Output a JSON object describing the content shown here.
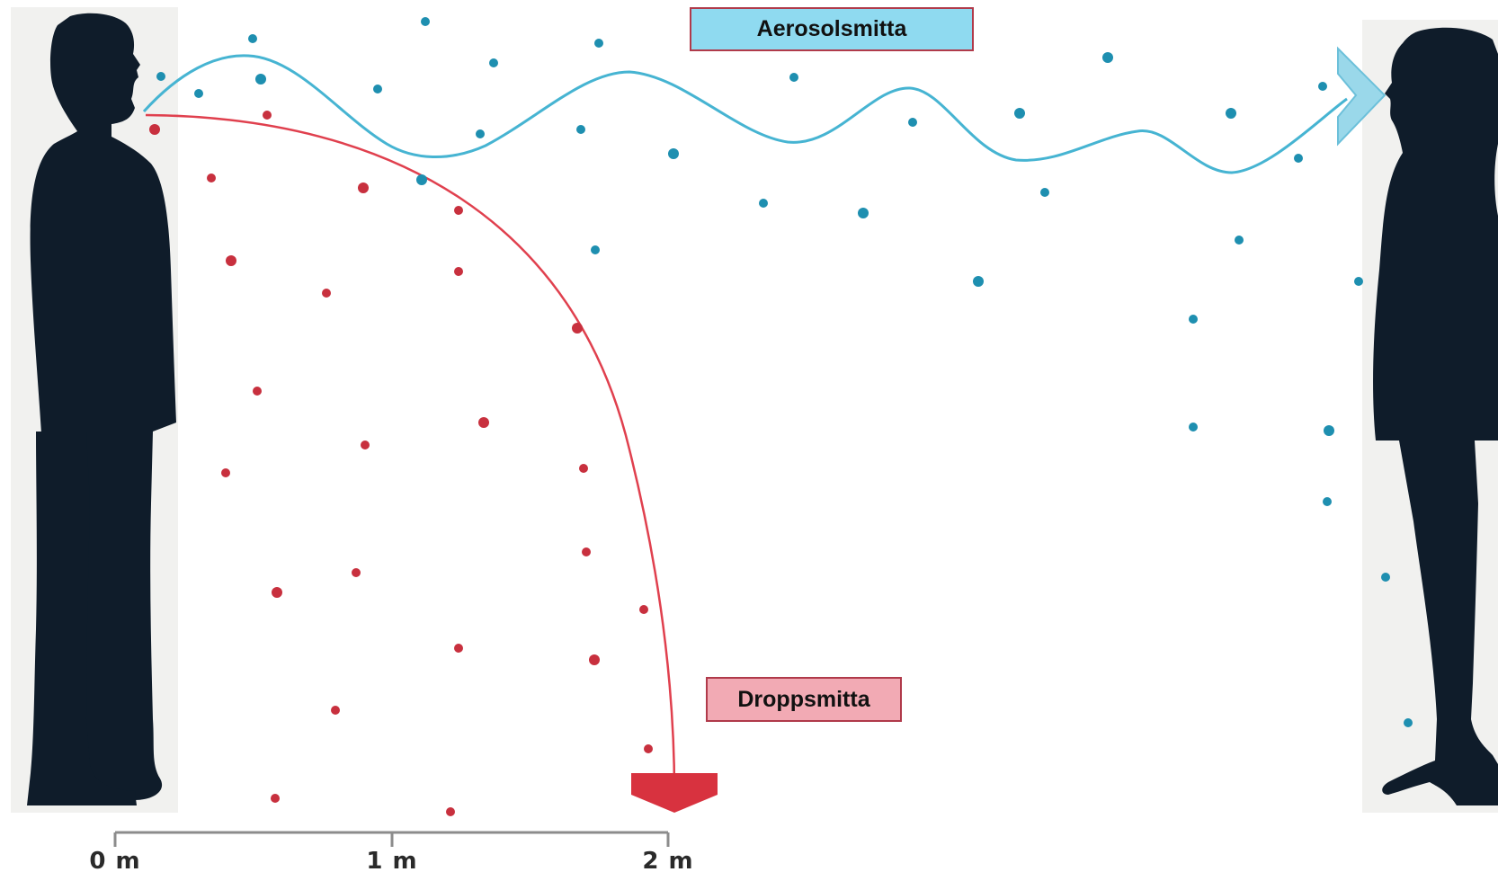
{
  "labels": {
    "aerosol": "Aerosolsmitta",
    "droplet": "Droppsmitta"
  },
  "scale": {
    "ticks": [
      "0 m",
      "1 m",
      "2 m"
    ]
  },
  "colors": {
    "aerosol_path": "#46b4d2",
    "aerosol_dot": "#1e8fb0",
    "aerosol_arrow": "#9ad8ea",
    "droplet_path": "#e0404e",
    "droplet_dot": "#c8303e",
    "droplet_arrow": "#d8323f",
    "silhouette": "#0f1c2a"
  },
  "figures": {
    "left": "speaking-man-silhouette",
    "right": "listening-woman-silhouette"
  }
}
